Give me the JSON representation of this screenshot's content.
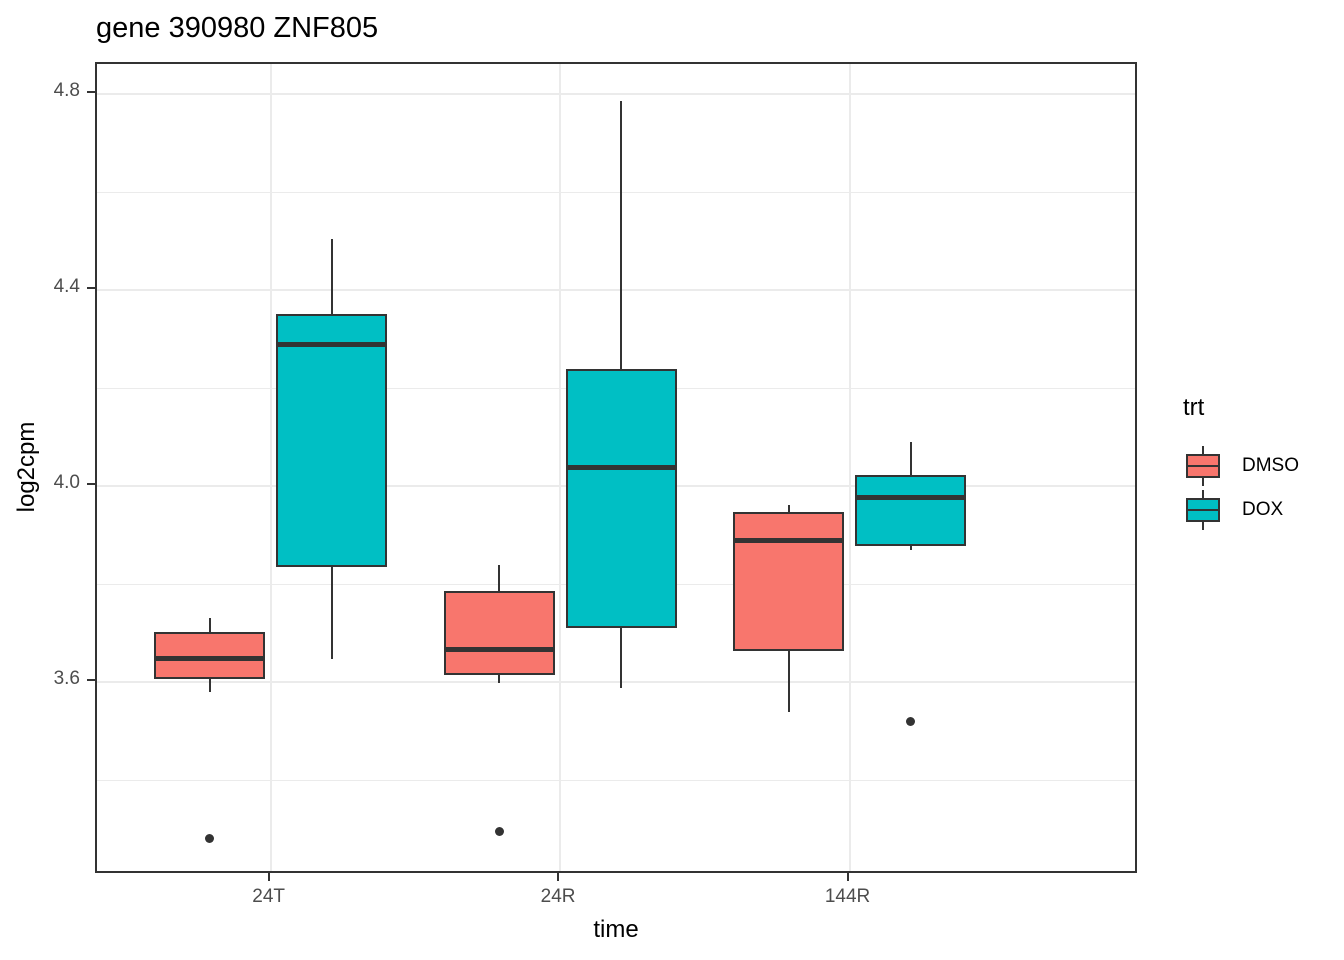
{
  "chart_data": {
    "type": "boxplot",
    "title": "gene 390980 ZNF805",
    "xlabel": "time",
    "ylabel": "log2cpm",
    "legend_title": "trt",
    "legend_position": "right",
    "grid": true,
    "categories": [
      "24T",
      "24R",
      "144R"
    ],
    "ylim": [
      3.206,
      4.861
    ],
    "y_ticks": [
      3.6,
      4.0,
      4.4,
      4.8
    ],
    "y_tick_labels": [
      "3.6",
      "4.0",
      "4.4",
      "4.8"
    ],
    "y_minor_ticks": [
      3.4,
      3.8,
      4.2,
      4.6
    ],
    "colors": {
      "stroke": "#333333",
      "grid": "#EBEBEB",
      "tick_label": "#4D4D4D",
      "text": "#000000",
      "panel_background": "#FFFFFF"
    },
    "series": [
      {
        "name": "DMSO",
        "color": "#F8766D",
        "boxes": [
          {
            "category": "24T",
            "whisker_low": 3.58,
            "q1": 3.606,
            "median": 3.647,
            "q3": 3.702,
            "whisker_high": 3.731,
            "outliers": [
              3.28
            ]
          },
          {
            "category": "24R",
            "whisker_low": 3.598,
            "q1": 3.614,
            "median": 3.667,
            "q3": 3.786,
            "whisker_high": 3.839,
            "outliers": [
              3.294
            ]
          },
          {
            "category": "144R",
            "whisker_low": 3.539,
            "q1": 3.663,
            "median": 3.888,
            "q3": 3.947,
            "whisker_high": 3.961,
            "outliers": []
          }
        ]
      },
      {
        "name": "DOX",
        "color": "#00BFC4",
        "boxes": [
          {
            "category": "24T",
            "whisker_low": 3.647,
            "q1": 3.835,
            "median": 4.288,
            "q3": 4.351,
            "whisker_high": 4.504,
            "outliers": []
          },
          {
            "category": "24R",
            "whisker_low": 3.588,
            "q1": 3.71,
            "median": 4.037,
            "q3": 4.239,
            "whisker_high": 4.786,
            "outliers": []
          },
          {
            "category": "144R",
            "whisker_low": 3.869,
            "q1": 3.878,
            "median": 3.976,
            "q3": 4.022,
            "whisker_high": 4.09,
            "outliers": [
              3.52
            ]
          }
        ]
      }
    ]
  }
}
